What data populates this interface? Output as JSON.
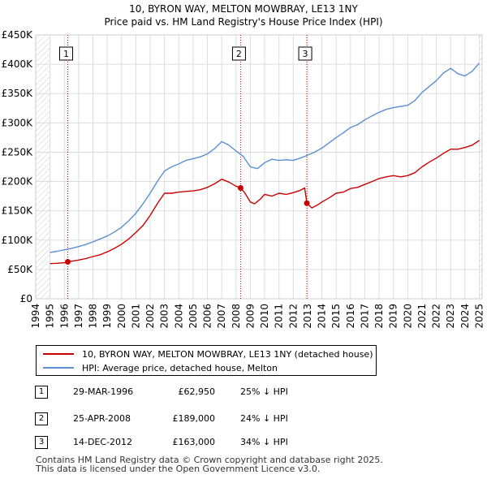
{
  "chart_data": {
    "type": "line",
    "title": "10, BYRON WAY, MELTON MOWBRAY, LE13 1NY",
    "subtitle": "Price paid vs. HM Land Registry's House Price Index (HPI)",
    "xlabel": "",
    "ylabel": "",
    "xlim": [
      1994.0,
      2025.2
    ],
    "ylim": [
      0,
      450000
    ],
    "y_ticks": [
      {
        "value": 0,
        "label": "£0"
      },
      {
        "value": 50000,
        "label": "£50K"
      },
      {
        "value": 100000,
        "label": "£100K"
      },
      {
        "value": 150000,
        "label": "£150K"
      },
      {
        "value": 200000,
        "label": "£200K"
      },
      {
        "value": 250000,
        "label": "£250K"
      },
      {
        "value": 300000,
        "label": "£300K"
      },
      {
        "value": 350000,
        "label": "£350K"
      },
      {
        "value": 400000,
        "label": "£400K"
      },
      {
        "value": 450000,
        "label": "£450K"
      }
    ],
    "x_ticks": [
      "1994",
      "1995",
      "1996",
      "1997",
      "1998",
      "1999",
      "2000",
      "2001",
      "2002",
      "2003",
      "2004",
      "2005",
      "2006",
      "2007",
      "2008",
      "2009",
      "2010",
      "2011",
      "2012",
      "2013",
      "2014",
      "2015",
      "2016",
      "2017",
      "2018",
      "2019",
      "2020",
      "2021",
      "2022",
      "2023",
      "2024",
      "2025"
    ],
    "grid": true,
    "hatched_ranges": [
      [
        1994.0,
        1995.0
      ],
      [
        2025.0,
        2025.2
      ]
    ],
    "series": [
      {
        "name": "10, BYRON WAY, MELTON MOWBRAY, LE13 1NY (detached house)",
        "color": "#cc0000",
        "x": [
          1995.0,
          1995.5,
          1996.0,
          1996.24,
          1996.5,
          1997.0,
          1997.5,
          1998.0,
          1998.5,
          1999.0,
          1999.5,
          2000.0,
          2000.5,
          2001.0,
          2001.5,
          2002.0,
          2002.5,
          2003.0,
          2003.5,
          2004.0,
          2004.5,
          2005.0,
          2005.5,
          2006.0,
          2006.5,
          2007.0,
          2007.5,
          2008.0,
          2008.32,
          2008.6,
          2009.0,
          2009.3,
          2009.7,
          2010.0,
          2010.5,
          2011.0,
          2011.5,
          2012.0,
          2012.5,
          2012.8,
          2012.95,
          2013.3,
          2013.7,
          2014.0,
          2014.5,
          2015.0,
          2015.5,
          2016.0,
          2016.5,
          2017.0,
          2017.5,
          2018.0,
          2018.5,
          2019.0,
          2019.5,
          2020.0,
          2020.5,
          2021.0,
          2021.5,
          2022.0,
          2022.5,
          2023.0,
          2023.5,
          2024.0,
          2024.5,
          2025.0
        ],
        "values": [
          60000,
          60500,
          61500,
          62950,
          64000,
          66000,
          68500,
          72000,
          75000,
          80000,
          86000,
          93000,
          102000,
          113000,
          125000,
          142000,
          162000,
          180000,
          180000,
          182000,
          183000,
          184000,
          186000,
          190000,
          196000,
          204000,
          199000,
          192000,
          189000,
          181000,
          165000,
          162000,
          170000,
          178000,
          175000,
          180000,
          178000,
          181000,
          185000,
          189000,
          163000,
          155000,
          160000,
          165000,
          172000,
          180000,
          182000,
          188000,
          190000,
          195000,
          200000,
          205000,
          208000,
          210000,
          208000,
          210000,
          215000,
          225000,
          233000,
          240000,
          248000,
          255000,
          255000,
          258000,
          262000,
          270000
        ]
      },
      {
        "name": "HPI: Average price, detached house, Melton",
        "color": "#5b8fd4",
        "x": [
          1995.0,
          1995.5,
          1996.0,
          1996.5,
          1997.0,
          1997.5,
          1998.0,
          1998.5,
          1999.0,
          1999.5,
          2000.0,
          2000.5,
          2001.0,
          2001.5,
          2002.0,
          2002.5,
          2003.0,
          2003.5,
          2004.0,
          2004.5,
          2005.0,
          2005.5,
          2006.0,
          2006.5,
          2007.0,
          2007.5,
          2008.0,
          2008.5,
          2009.0,
          2009.5,
          2010.0,
          2010.5,
          2011.0,
          2011.5,
          2012.0,
          2012.5,
          2013.0,
          2013.5,
          2014.0,
          2014.5,
          2015.0,
          2015.5,
          2016.0,
          2016.5,
          2017.0,
          2017.5,
          2018.0,
          2018.5,
          2019.0,
          2019.5,
          2020.0,
          2020.5,
          2021.0,
          2021.5,
          2022.0,
          2022.5,
          2023.0,
          2023.5,
          2024.0,
          2024.5,
          2025.0
        ],
        "values": [
          79000,
          81000,
          83500,
          86000,
          89000,
          92500,
          97000,
          102000,
          107000,
          114000,
          122000,
          133000,
          146000,
          162000,
          180000,
          200000,
          218000,
          225000,
          230000,
          236000,
          239000,
          242000,
          247000,
          256000,
          268000,
          262000,
          252000,
          243000,
          225000,
          222000,
          232000,
          238000,
          236000,
          237000,
          236000,
          240000,
          245000,
          250000,
          257000,
          266000,
          275000,
          283000,
          292000,
          297000,
          305000,
          312000,
          318000,
          323000,
          326000,
          328000,
          330000,
          338000,
          352000,
          362000,
          372000,
          385000,
          393000,
          384000,
          380000,
          388000,
          402000
        ]
      }
    ],
    "sales": [
      {
        "num": "1",
        "x": 1996.24,
        "value": 62950
      },
      {
        "num": "2",
        "x": 2008.32,
        "value": 189000
      },
      {
        "num": "3",
        "x": 2012.95,
        "value": 163000
      }
    ]
  },
  "colors": {
    "property": "#cc0000",
    "hpi": "#5b8fd4",
    "grid": "#dddddd",
    "hatch": "#cccccc"
  },
  "title": {
    "line1": "10, BYRON WAY, MELTON MOWBRAY, LE13 1NY",
    "line2": "Price paid vs. HM Land Registry's House Price Index (HPI)"
  },
  "legend": {
    "property_label": "10, BYRON WAY, MELTON MOWBRAY, LE13 1NY (detached house)",
    "hpi_label": "HPI: Average price, detached house, Melton"
  },
  "transactions": [
    {
      "num": "1",
      "date": "29-MAR-1996",
      "price": "£62,950",
      "hpi": "25% ↓ HPI"
    },
    {
      "num": "2",
      "date": "25-APR-2008",
      "price": "£189,000",
      "hpi": "24% ↓ HPI"
    },
    {
      "num": "3",
      "date": "14-DEC-2012",
      "price": "£163,000",
      "hpi": "34% ↓ HPI"
    }
  ],
  "footer": {
    "line1": "Contains HM Land Registry data © Crown copyright and database right 2025.",
    "line2": "This data is licensed under the Open Government Licence v3.0."
  }
}
